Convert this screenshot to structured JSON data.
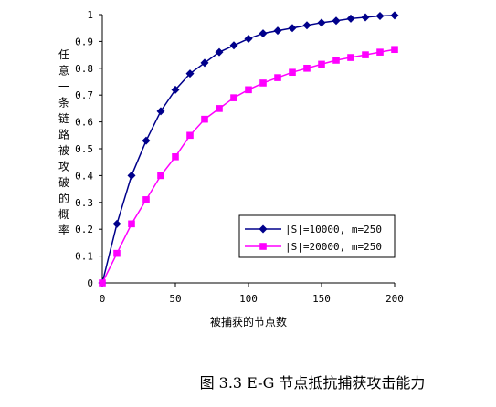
{
  "chart_data": {
    "type": "line",
    "ylabel": "任意一条链路被攻破的概率",
    "xlabel": "被捕获的节点数",
    "caption": "图 3.3 E-G 节点抵抗捕获攻击能力",
    "xlim": [
      0,
      200
    ],
    "ylim": [
      0,
      1
    ],
    "x_ticks": [
      "0",
      "50",
      "100",
      "150",
      "200"
    ],
    "y_ticks": [
      "0",
      "0.1",
      "0.2",
      "0.3",
      "0.4",
      "0.5",
      "0.6",
      "0.7",
      "0.8",
      "0.9",
      "1"
    ],
    "grid": false,
    "legend_position": "lower-right",
    "x": [
      0,
      10,
      20,
      30,
      40,
      50,
      60,
      70,
      80,
      90,
      100,
      110,
      120,
      130,
      140,
      150,
      160,
      170,
      180,
      190,
      200
    ],
    "series": [
      {
        "name": "|S|=10000, m=250",
        "color": "#00008b",
        "marker": "diamond",
        "values": [
          0,
          0.22,
          0.4,
          0.53,
          0.64,
          0.72,
          0.78,
          0.82,
          0.86,
          0.885,
          0.91,
          0.93,
          0.94,
          0.95,
          0.96,
          0.97,
          0.977,
          0.985,
          0.99,
          0.995,
          0.997
        ]
      },
      {
        "name": "|S|=20000, m=250",
        "color": "#ff00ff",
        "marker": "square",
        "values": [
          0,
          0.11,
          0.22,
          0.31,
          0.4,
          0.47,
          0.55,
          0.61,
          0.65,
          0.69,
          0.72,
          0.745,
          0.765,
          0.785,
          0.8,
          0.815,
          0.83,
          0.84,
          0.85,
          0.86,
          0.87
        ]
      }
    ]
  }
}
